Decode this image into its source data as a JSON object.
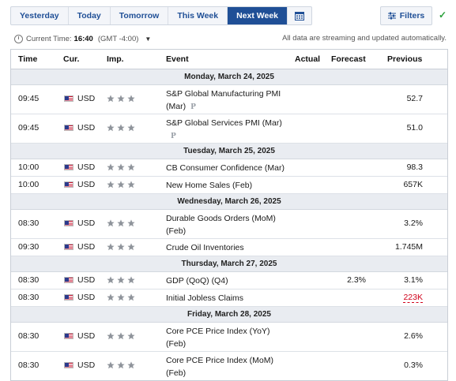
{
  "nav": {
    "tabs": [
      "Yesterday",
      "Today",
      "Tomorrow",
      "This Week",
      "Next Week"
    ],
    "active_tab": "Next Week",
    "filters_label": "Filters"
  },
  "timebar": {
    "label": "Current Time:",
    "time": "16:40",
    "timezone": "(GMT -4:00)",
    "streaming": "All data are streaming and updated automatically."
  },
  "columns": {
    "time": "Time",
    "currency": "Cur.",
    "importance": "Imp.",
    "event": "Event",
    "actual": "Actual",
    "forecast": "Forecast",
    "previous": "Previous"
  },
  "days": [
    {
      "date": "Monday, March 24, 2025",
      "events": [
        {
          "time": "09:45",
          "currency": "USD",
          "event": "S&P Global Manufacturing PMI (Mar)",
          "preliminary": "P",
          "actual": "",
          "forecast": "",
          "previous": "52.7",
          "previous_revised": false,
          "importance": 3
        },
        {
          "time": "09:45",
          "currency": "USD",
          "event": "S&P Global Services PMI (Mar)",
          "preliminary": "P",
          "actual": "",
          "forecast": "",
          "previous": "51.0",
          "previous_revised": false,
          "importance": 3
        }
      ]
    },
    {
      "date": "Tuesday, March 25, 2025",
      "events": [
        {
          "time": "10:00",
          "currency": "USD",
          "event": "CB Consumer Confidence (Mar)",
          "actual": "",
          "forecast": "",
          "previous": "98.3",
          "previous_revised": false,
          "importance": 3
        },
        {
          "time": "10:00",
          "currency": "USD",
          "event": "New Home Sales (Feb)",
          "actual": "",
          "forecast": "",
          "previous": "657K",
          "previous_revised": false,
          "importance": 3
        }
      ]
    },
    {
      "date": "Wednesday, March 26, 2025",
      "events": [
        {
          "time": "08:30",
          "currency": "USD",
          "event": "Durable Goods Orders (MoM) (Feb)",
          "actual": "",
          "forecast": "",
          "previous": "3.2%",
          "previous_revised": false,
          "importance": 3
        },
        {
          "time": "09:30",
          "currency": "USD",
          "event": "Crude Oil Inventories",
          "actual": "",
          "forecast": "",
          "previous": "1.745M",
          "previous_revised": false,
          "importance": 3
        }
      ]
    },
    {
      "date": "Thursday, March 27, 2025",
      "events": [
        {
          "time": "08:30",
          "currency": "USD",
          "event": "GDP (QoQ) (Q4)",
          "actual": "",
          "forecast": "2.3%",
          "previous": "3.1%",
          "previous_revised": false,
          "importance": 3
        },
        {
          "time": "08:30",
          "currency": "USD",
          "event": "Initial Jobless Claims",
          "actual": "",
          "forecast": "",
          "previous": "223K",
          "previous_revised": true,
          "importance": 3
        }
      ]
    },
    {
      "date": "Friday, March 28, 2025",
      "events": [
        {
          "time": "08:30",
          "currency": "USD",
          "event": "Core PCE Price Index (YoY) (Feb)",
          "actual": "",
          "forecast": "",
          "previous": "2.6%",
          "previous_revised": false,
          "importance": 3
        },
        {
          "time": "08:30",
          "currency": "USD",
          "event": "Core PCE Price Index (MoM) (Feb)",
          "actual": "",
          "forecast": "",
          "previous": "0.3%",
          "previous_revised": false,
          "importance": 3
        }
      ]
    }
  ],
  "colors": {
    "accent": "#1f4f96",
    "revised_red": "#d0021b",
    "star": "#8f949b",
    "day_bg": "#e9ecf1"
  },
  "icons": {
    "calendar": "calendar-icon",
    "filters": "sliders-icon",
    "check": "check-icon",
    "clock": "clock-icon",
    "flag": "us-flag-icon",
    "star": "star-icon",
    "preliminary": "preliminary-icon"
  }
}
